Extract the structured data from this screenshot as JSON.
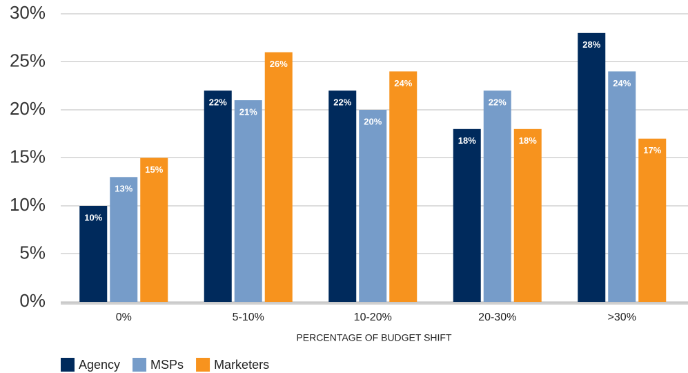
{
  "chart_data": {
    "type": "bar",
    "categories": [
      "0%",
      "5-10%",
      "10-20%",
      "20-30%",
      ">30%"
    ],
    "xlabel": "PERCENTAGE OF BUDGET SHIFT",
    "series": [
      {
        "name": "Agency",
        "color": "#002a5c",
        "values": [
          10,
          22,
          22,
          18,
          28
        ],
        "value_labels": [
          "10%",
          "22%",
          "22%",
          "18%",
          "28%"
        ]
      },
      {
        "name": "MSPs",
        "color": "#769cc9",
        "values": [
          13,
          21,
          20,
          22,
          24
        ],
        "value_labels": [
          "13%",
          "21%",
          "20%",
          "22%",
          "24%"
        ]
      },
      {
        "name": "Marketers",
        "color": "#f7931e",
        "values": [
          15,
          26,
          24,
          18,
          17
        ],
        "value_labels": [
          "15%",
          "26%",
          "24%",
          "18%",
          "17%"
        ]
      }
    ],
    "ylim": [
      0,
      30
    ],
    "yticks": [
      {
        "value": 0,
        "label": "0%"
      },
      {
        "value": 5,
        "label": "5%"
      },
      {
        "value": 10,
        "label": "10%"
      },
      {
        "value": 15,
        "label": "15%"
      },
      {
        "value": 20,
        "label": "20%"
      },
      {
        "value": 25,
        "label": "25%"
      },
      {
        "value": 30,
        "label": "30%"
      }
    ],
    "grid": true,
    "legend": "bottom-left"
  }
}
